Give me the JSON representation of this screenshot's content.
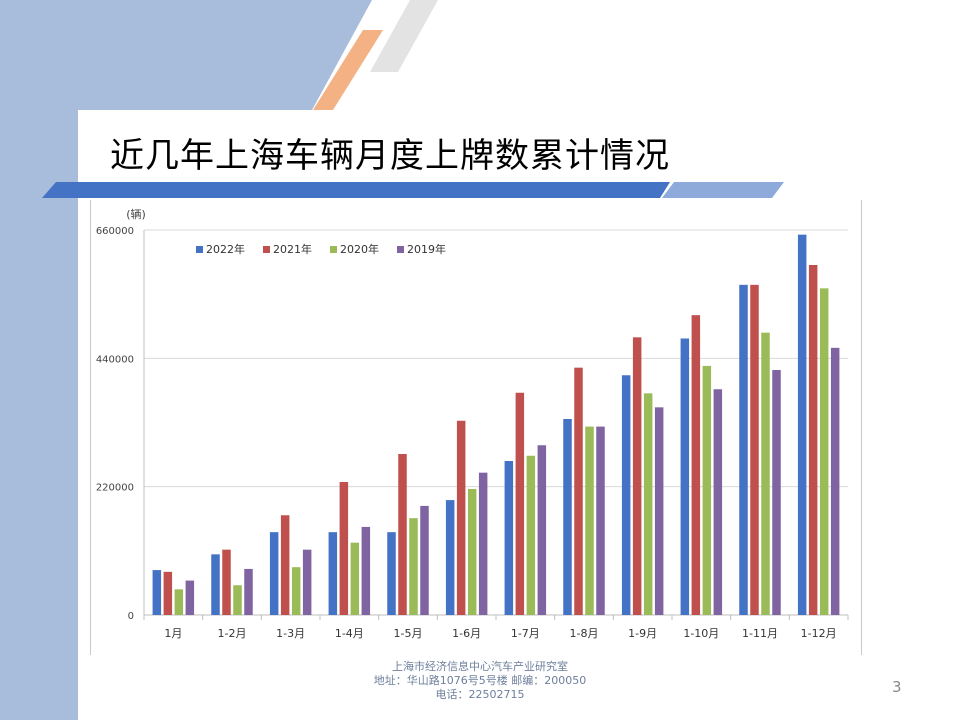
{
  "slide": {
    "title": "近几年上海车辆月度上牌数累计情况",
    "page_number": "3",
    "footer": {
      "line1": "上海市经济信息中心汽车产业研究室",
      "line2": "地址：华山路1076号5号楼   邮编：200050",
      "line3": "电话：22502715"
    },
    "colors": {
      "left_band": "#a8bcdc",
      "rule_dark": "#4472c4",
      "rule_light": "#8eaadb",
      "stripe_orange": "#f4b183",
      "stripe_gray": "#d9d9d9"
    }
  },
  "chart_data": {
    "type": "bar",
    "unit_label": "(辆)",
    "categories": [
      "1月",
      "1-2月",
      "1-3月",
      "1-4月",
      "1-5月",
      "1-6月",
      "1-7月",
      "1-8月",
      "1-9月",
      "1-10月",
      "1-11月",
      "1-12月"
    ],
    "series": [
      {
        "name": "2022年",
        "color": "#4472c4",
        "values": [
          77000,
          104000,
          142000,
          142000,
          142000,
          197000,
          264000,
          336000,
          411000,
          474000,
          566000,
          652000
        ]
      },
      {
        "name": "2021年",
        "color": "#c0504d",
        "values": [
          74000,
          112000,
          171000,
          228000,
          276000,
          333000,
          381000,
          424000,
          476000,
          514000,
          566000,
          600000
        ]
      },
      {
        "name": "2020年",
        "color": "#9bbb59",
        "values": [
          44000,
          51000,
          82000,
          124000,
          166000,
          216000,
          273000,
          323000,
          380000,
          427000,
          484000,
          560000
        ]
      },
      {
        "name": "2019年",
        "color": "#8064a2",
        "values": [
          59000,
          79000,
          112000,
          151000,
          187000,
          244000,
          291000,
          323000,
          356000,
          387000,
          420000,
          458000
        ]
      }
    ],
    "y_ticks": [
      "0",
      "220000",
      "440000",
      "660000"
    ],
    "ylim": [
      0,
      660000
    ],
    "grid": true,
    "legend_position": "top-left"
  }
}
